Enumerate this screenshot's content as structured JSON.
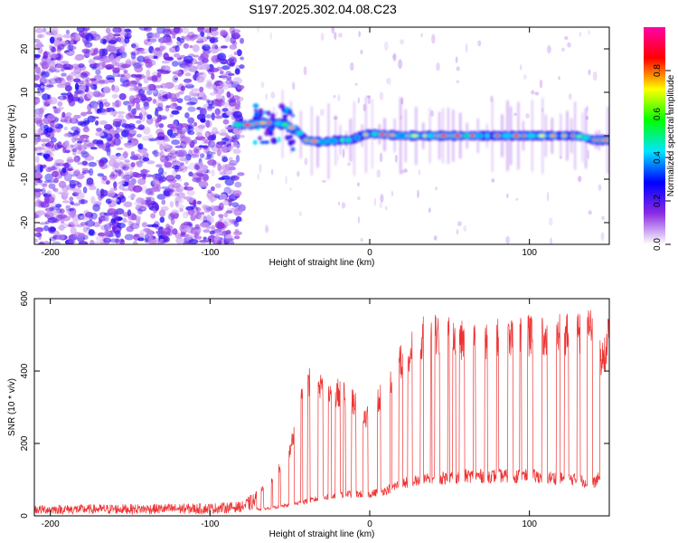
{
  "title": "S197.2025.302.04.08.C23",
  "chart_data": [
    {
      "type": "heatmap",
      "name": "spectrogram",
      "xlabel": "Height of straight line (km)",
      "ylabel": "Frequency (Hz)",
      "xlim": [
        -210,
        150
      ],
      "ylim": [
        -25,
        25
      ],
      "xticks": [
        -200,
        -100,
        0,
        100
      ],
      "xtick_labels": [
        "-200",
        "-100",
        "0",
        "100"
      ],
      "yticks": [
        20,
        10,
        0,
        -10,
        -20
      ],
      "ytick_labels": [
        "20",
        "10",
        "0",
        "-10",
        "-20"
      ],
      "noise_region_x": [
        -210,
        -80
      ],
      "signal_start_x": -82,
      "signal_track": [
        [
          -82,
          2.5
        ],
        [
          -75,
          2.5
        ],
        [
          -68,
          3.0
        ],
        [
          -60,
          3.0
        ],
        [
          -52,
          2.5
        ],
        [
          -45,
          1.0
        ],
        [
          -40,
          -1.0
        ],
        [
          -30,
          -1.5
        ],
        [
          -20,
          -1.0
        ],
        [
          -12,
          -1.0
        ],
        [
          -5,
          0.0
        ],
        [
          0,
          0.5
        ],
        [
          20,
          0.0
        ],
        [
          60,
          0.0
        ],
        [
          100,
          0.0
        ],
        [
          130,
          0.0
        ],
        [
          140,
          -1.0
        ],
        [
          150,
          -1.0
        ]
      ],
      "colorbar": {
        "label": "Normalized spectral amplitude",
        "ticks": [
          0.0,
          0.2,
          0.4,
          0.6,
          0.8
        ],
        "tick_labels": [
          "0.0",
          "0.2",
          "0.4",
          "0.6",
          "0.8"
        ],
        "range": [
          0,
          1
        ],
        "colors": [
          "#ffffff",
          "#8a2be2",
          "#0000ff",
          "#00e5ff",
          "#00ff00",
          "#ffff00",
          "#ff0000",
          "#ff00aa"
        ]
      }
    },
    {
      "type": "line",
      "name": "snr",
      "xlabel": "Height of straight line (km)",
      "ylabel": "SNR (10 * v/v)",
      "xlim": [
        -210,
        150
      ],
      "ylim": [
        0,
        600
      ],
      "xticks": [
        -200,
        -100,
        0,
        100
      ],
      "xtick_labels": [
        "-200",
        "-100",
        "0",
        "100"
      ],
      "yticks": [
        0,
        200,
        400,
        600
      ],
      "ytick_labels": [
        "0",
        "200",
        "400",
        "600"
      ],
      "color": "#ee3333",
      "envelope": [
        {
          "x": -210,
          "low": 5,
          "high": 30
        },
        {
          "x": -100,
          "low": 5,
          "high": 35
        },
        {
          "x": -80,
          "low": 10,
          "high": 40
        },
        {
          "x": -65,
          "low": 20,
          "high": 90
        },
        {
          "x": -50,
          "low": 30,
          "high": 200
        },
        {
          "x": -40,
          "low": 40,
          "high": 420
        },
        {
          "x": -30,
          "low": 50,
          "high": 390
        },
        {
          "x": -15,
          "low": 60,
          "high": 380
        },
        {
          "x": 0,
          "low": 60,
          "high": 300
        },
        {
          "x": 10,
          "low": 70,
          "high": 400
        },
        {
          "x": 20,
          "low": 90,
          "high": 480
        },
        {
          "x": 35,
          "low": 100,
          "high": 560
        },
        {
          "x": 60,
          "low": 110,
          "high": 550
        },
        {
          "x": 100,
          "low": 110,
          "high": 560
        },
        {
          "x": 130,
          "low": 100,
          "high": 560
        },
        {
          "x": 140,
          "low": 90,
          "high": 590
        },
        {
          "x": 145,
          "low": 110,
          "high": 470
        },
        {
          "x": 150,
          "low": 400,
          "high": 560
        }
      ]
    }
  ]
}
